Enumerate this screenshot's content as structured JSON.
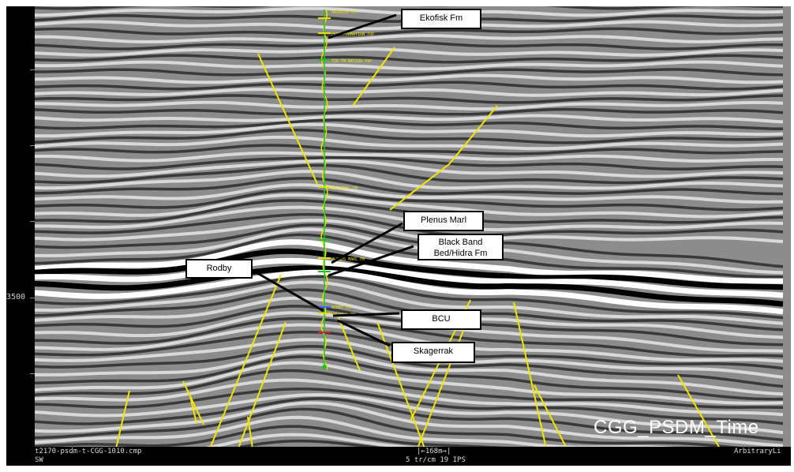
{
  "axis": {
    "depth_label": "3500"
  },
  "callouts": {
    "ekofisk": "Ekofisk Fm",
    "plenus": "Plenus Marl",
    "blackband_line1": "Black Band",
    "blackband_line2": "Bed/Hidra Fm",
    "rodby": "Rodby",
    "bcu": "BCU",
    "skagerrak": "Skagerrak"
  },
  "well_tops": {
    "t1": "MAGREEN FM",
    "t2": "EKOF FORMATION TOP",
    "t3": "TOR FM MATION TOP",
    "t4": "MACKEREL FM",
    "t5": "PLENUS MARL FM",
    "t6": "RODBY FM",
    "t7": "VALHALL FM"
  },
  "footer": {
    "line_name": "t2170-psdm-t-CGG-1010.cmp",
    "direction": "SW",
    "scale_bar": "168m",
    "scale_info": "5 tr/cm 19 IPS",
    "section_type": "ArbitraryLi"
  },
  "watermark": "CGG_PSDM_Time",
  "colors": {
    "fault": "#f2e600",
    "well": "#22c422",
    "tops": "#e8e000",
    "background": "#000000"
  }
}
